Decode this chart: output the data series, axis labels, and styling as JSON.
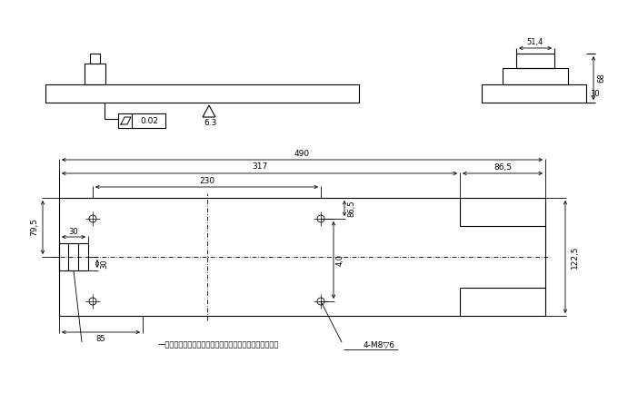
{
  "bg_color": "#ffffff",
  "line_color": "#000000",
  "font_size": 6.5,
  "annotation_text": "—通电接头，尺寸按实际情况设计，要求小于等于图纸尺寸",
  "m8_text": "4-M8▽6",
  "flatness_val": "0.02",
  "roughness_val": "6.3",
  "dim_490": "490",
  "dim_317": "317",
  "dim_86_5a": "86,5",
  "dim_230": "230",
  "dim_79_5": "79,5",
  "dim_122_5": "122,5",
  "dim_30a": "30",
  "dim_30b": "30",
  "dim_40": "4,0",
  "dim_86_5b": "86,5",
  "dim_85": "85",
  "dim_51_4": "51,4",
  "dim_68": "68",
  "dim_30c": "30"
}
